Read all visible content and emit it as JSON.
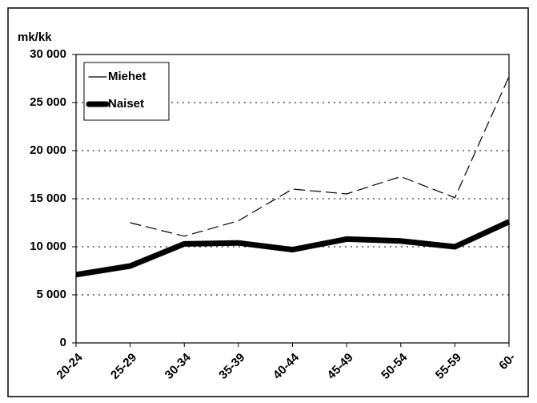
{
  "chart_data": {
    "type": "line",
    "y_label": "mk/kk",
    "categories": [
      "20-24",
      "25-29",
      "30-34",
      "35-39",
      "40-44",
      "45-49",
      "50-54",
      "55-59",
      "60-"
    ],
    "series": [
      {
        "name": "Miehet",
        "color": "#000000",
        "line_style": "dashed",
        "values": [
          null,
          12500,
          11100,
          12700,
          16000,
          15500,
          17300,
          15100,
          27700
        ]
      },
      {
        "name": "Naiset",
        "color": "#000000",
        "line_style": "thick",
        "values": [
          7100,
          8000,
          10300,
          10400,
          9700,
          10800,
          10600,
          10000,
          12600
        ]
      }
    ],
    "ylim": [
      0,
      30000
    ],
    "yticks": [
      {
        "value": 0,
        "label": "0"
      },
      {
        "value": 5000,
        "label": "5 000"
      },
      {
        "value": 10000,
        "label": "10 000"
      },
      {
        "value": 15000,
        "label": "15 000"
      },
      {
        "value": 20000,
        "label": "20 000"
      },
      {
        "value": 25000,
        "label": "25 000"
      },
      {
        "value": 30000,
        "label": "30 000"
      }
    ],
    "grid": true,
    "legend": "top-left"
  }
}
